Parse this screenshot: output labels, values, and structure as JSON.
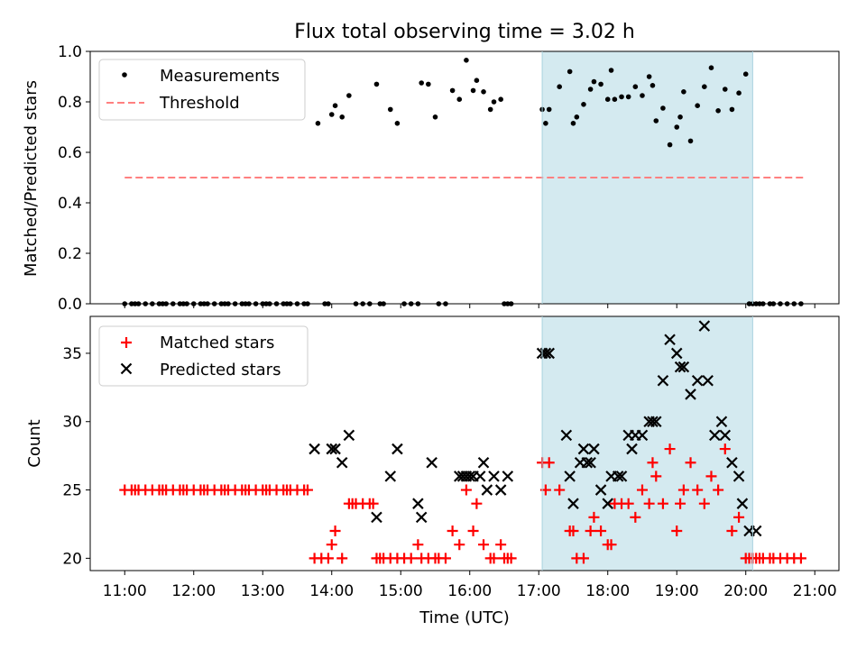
{
  "chart_data": [
    {
      "type": "scatter",
      "title": "Flux total observing time = 3.02 h",
      "ylabel": "Matched/Predicted stars",
      "ylim": [
        0,
        1.0
      ],
      "yticks": [
        "0.0",
        "0.2",
        "0.4",
        "0.6",
        "0.8",
        "1.0"
      ],
      "xlim_hours": [
        10.5,
        21.35
      ],
      "shaded_interval_hours": [
        17.05,
        20.1
      ],
      "shade_color": "#d4eaf0",
      "threshold": {
        "value": 0.5,
        "x_hours": [
          11.0,
          20.85
        ],
        "color": "#ff8080"
      },
      "legend": {
        "placement": "top-left",
        "items": [
          {
            "label": "Measurements",
            "marker": "dot"
          },
          {
            "label": "Threshold",
            "marker": "dashed-line"
          }
        ]
      },
      "series": [
        {
          "name": "Measurements",
          "color": "#000000",
          "x": [
            11.0,
            11.1,
            11.15,
            11.2,
            11.3,
            11.4,
            11.5,
            11.55,
            11.6,
            11.7,
            11.8,
            11.85,
            11.9,
            12.0,
            12.1,
            12.15,
            12.2,
            12.3,
            12.4,
            12.45,
            12.5,
            12.6,
            12.7,
            12.75,
            12.8,
            12.9,
            13.0,
            13.05,
            13.1,
            13.2,
            13.3,
            13.35,
            13.4,
            13.5,
            13.6,
            13.65,
            13.8,
            13.9,
            13.95,
            14.0,
            14.05,
            14.15,
            14.25,
            14.35,
            14.45,
            14.55,
            14.65,
            14.7,
            14.75,
            14.85,
            14.95,
            15.05,
            15.15,
            15.25,
            15.3,
            15.4,
            15.5,
            15.55,
            15.65,
            15.75,
            15.85,
            15.95,
            16.05,
            16.1,
            16.2,
            16.3,
            16.35,
            16.45,
            16.5,
            16.55,
            16.6,
            17.05,
            17.1,
            17.15,
            17.3,
            17.45,
            17.5,
            17.55,
            17.65,
            17.75,
            17.8,
            17.9,
            18.0,
            18.05,
            18.1,
            18.2,
            18.3,
            18.4,
            18.5,
            18.6,
            18.65,
            18.7,
            18.8,
            18.9,
            19.0,
            19.05,
            19.1,
            19.2,
            19.3,
            19.4,
            19.5,
            19.6,
            19.7,
            19.8,
            19.9,
            20.0,
            20.05,
            20.1,
            20.15,
            20.2,
            20.25,
            20.35,
            20.4,
            20.5,
            20.6,
            20.7,
            20.8
          ],
          "y": [
            0.0,
            0.0,
            0.0,
            0.0,
            0.0,
            0.0,
            0.0,
            0.0,
            0.0,
            0.0,
            0.0,
            0.0,
            0.0,
            0.0,
            0.0,
            0.0,
            0.0,
            0.0,
            0.0,
            0.0,
            0.0,
            0.0,
            0.0,
            0.0,
            0.0,
            0.0,
            0.0,
            0.0,
            0.0,
            0.0,
            0.0,
            0.0,
            0.0,
            0.0,
            0.0,
            0.0,
            0.715,
            0.0,
            0.0,
            0.75,
            0.785,
            0.74,
            0.825,
            0.0,
            0.0,
            0.0,
            0.87,
            0.0,
            0.0,
            0.77,
            0.715,
            0.0,
            0.0,
            0.0,
            0.875,
            0.87,
            0.74,
            0.0,
            0.0,
            0.845,
            0.81,
            0.965,
            0.845,
            0.885,
            0.84,
            0.77,
            0.8,
            0.81,
            0.0,
            0.0,
            0.0,
            0.77,
            0.715,
            0.77,
            0.86,
            0.92,
            0.715,
            0.74,
            0.79,
            0.85,
            0.88,
            0.87,
            0.81,
            0.925,
            0.81,
            0.82,
            0.82,
            0.86,
            0.825,
            0.9,
            0.865,
            0.725,
            0.775,
            0.63,
            0.7,
            0.74,
            0.84,
            0.645,
            0.785,
            0.86,
            0.935,
            0.765,
            0.85,
            0.77,
            0.835,
            0.91,
            0.0,
            0.0,
            0.0,
            0.0,
            0.0,
            0.0,
            0.0,
            0.0,
            0.0,
            0.0,
            0.0
          ]
        }
      ]
    },
    {
      "type": "scatter",
      "xlabel": "Time (UTC)",
      "ylabel": "Count",
      "ylim": [
        19.1,
        37.7
      ],
      "yticks": [
        "20",
        "25",
        "30",
        "35"
      ],
      "xticks": [
        "11:00",
        "12:00",
        "13:00",
        "14:00",
        "15:00",
        "16:00",
        "17:00",
        "18:00",
        "19:00",
        "20:00",
        "21:00"
      ],
      "xlim_hours": [
        10.5,
        21.35
      ],
      "shaded_interval_hours": [
        17.05,
        20.1
      ],
      "shade_color": "#d4eaf0",
      "legend": {
        "placement": "top-left",
        "items": [
          {
            "label": "Matched stars",
            "marker": "plus"
          },
          {
            "label": "Predicted stars",
            "marker": "x"
          }
        ]
      },
      "series": [
        {
          "name": "Matched stars",
          "color": "#ff0000",
          "x": [
            11.0,
            11.1,
            11.15,
            11.2,
            11.3,
            11.4,
            11.5,
            11.55,
            11.6,
            11.7,
            11.8,
            11.85,
            11.9,
            12.0,
            12.1,
            12.15,
            12.2,
            12.3,
            12.4,
            12.45,
            12.5,
            12.6,
            12.7,
            12.75,
            12.8,
            12.9,
            13.0,
            13.05,
            13.1,
            13.2,
            13.3,
            13.35,
            13.4,
            13.5,
            13.6,
            13.65,
            13.75,
            13.85,
            13.95,
            14.0,
            14.05,
            14.15,
            14.25,
            14.3,
            14.35,
            14.45,
            14.55,
            14.6,
            14.65,
            14.7,
            14.75,
            14.85,
            14.95,
            15.05,
            15.15,
            15.25,
            15.3,
            15.4,
            15.5,
            15.55,
            15.65,
            15.75,
            15.85,
            15.95,
            16.05,
            16.1,
            16.2,
            16.3,
            16.35,
            16.45,
            16.5,
            16.55,
            16.6,
            17.05,
            17.1,
            17.15,
            17.3,
            17.45,
            17.5,
            17.55,
            17.65,
            17.75,
            17.8,
            17.9,
            18.0,
            18.05,
            18.1,
            18.2,
            18.3,
            18.4,
            18.5,
            18.6,
            18.65,
            18.7,
            18.8,
            18.9,
            19.0,
            19.05,
            19.1,
            19.2,
            19.3,
            19.4,
            19.5,
            19.6,
            19.7,
            19.8,
            19.9,
            20.0,
            20.05,
            20.1,
            20.15,
            20.2,
            20.25,
            20.35,
            20.4,
            20.5,
            20.6,
            20.7,
            20.8
          ],
          "y": [
            25,
            25,
            25,
            25,
            25,
            25,
            25,
            25,
            25,
            25,
            25,
            25,
            25,
            25,
            25,
            25,
            25,
            25,
            25,
            25,
            25,
            25,
            25,
            25,
            25,
            25,
            25,
            25,
            25,
            25,
            25,
            25,
            25,
            25,
            25,
            25,
            20,
            20,
            20,
            21,
            22,
            20,
            24,
            24,
            24,
            24,
            24,
            24,
            20,
            20,
            20,
            20,
            20,
            20,
            20,
            21,
            20,
            20,
            20,
            20,
            20,
            22,
            21,
            25,
            22,
            24,
            21,
            20,
            20,
            21,
            20,
            20,
            20,
            27,
            25,
            27,
            25,
            22,
            22,
            20,
            20,
            22,
            23,
            22,
            21,
            21,
            24,
            24,
            24,
            23,
            25,
            24,
            27,
            26,
            24,
            28,
            22,
            24,
            25,
            27,
            25,
            24,
            26,
            25,
            28,
            22,
            23,
            20,
            20,
            20,
            20,
            20,
            20,
            20,
            20,
            20,
            20,
            20,
            20
          ]
        },
        {
          "name": "Predicted stars",
          "color": "#000000",
          "x": [
            13.75,
            14.0,
            14.05,
            14.15,
            14.25,
            14.65,
            14.85,
            14.95,
            15.25,
            15.3,
            15.45,
            15.85,
            15.9,
            15.95,
            16.0,
            16.05,
            16.15,
            16.2,
            16.25,
            16.35,
            16.45,
            16.55,
            17.05,
            17.1,
            17.15,
            17.4,
            17.45,
            17.5,
            17.6,
            17.65,
            17.7,
            17.75,
            17.8,
            17.9,
            18.0,
            18.05,
            18.15,
            18.2,
            18.3,
            18.35,
            18.4,
            18.5,
            18.6,
            18.65,
            18.7,
            18.8,
            18.9,
            19.0,
            19.05,
            19.1,
            19.2,
            19.3,
            19.4,
            19.45,
            19.55,
            19.65,
            19.7,
            19.8,
            19.9,
            19.95,
            20.05,
            20.15
          ],
          "y": [
            28,
            28,
            28,
            27,
            29,
            23,
            26,
            28,
            24,
            23,
            27,
            26,
            26,
            26,
            26,
            26,
            26,
            27,
            25,
            26,
            25,
            26,
            35,
            35,
            35,
            29,
            26,
            24,
            27,
            28,
            27,
            27,
            28,
            25,
            24,
            26,
            26,
            26,
            29,
            28,
            29,
            29,
            30,
            30,
            30,
            33,
            36,
            35,
            34,
            34,
            32,
            33,
            37,
            33,
            29,
            30,
            29,
            27,
            26,
            24,
            22,
            22
          ]
        }
      ]
    }
  ]
}
